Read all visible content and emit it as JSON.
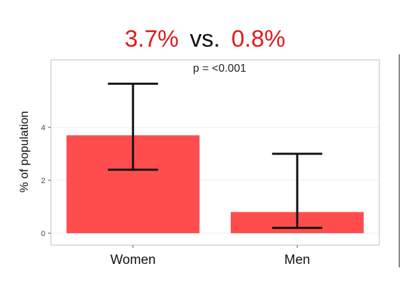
{
  "headline": {
    "left_value": "3.7%",
    "separator": "vs.",
    "right_value": "0.8%",
    "highlight_color": "#e11b1b"
  },
  "chart_data": {
    "type": "bar",
    "categories": [
      "Women",
      "Men"
    ],
    "values": [
      3.7,
      0.8
    ],
    "error_bars": [
      {
        "lower": 2.4,
        "upper": 5.65
      },
      {
        "lower": 0.2,
        "upper": 3.0
      }
    ],
    "title": "",
    "xlabel": "",
    "ylabel": "% of population",
    "ylim": [
      -0.45,
      6.55
    ],
    "yticks": [
      0,
      2,
      4
    ],
    "annotation": "p = <0.001",
    "bar_color": "#ff4d4d",
    "grid": true,
    "legend": "none"
  }
}
